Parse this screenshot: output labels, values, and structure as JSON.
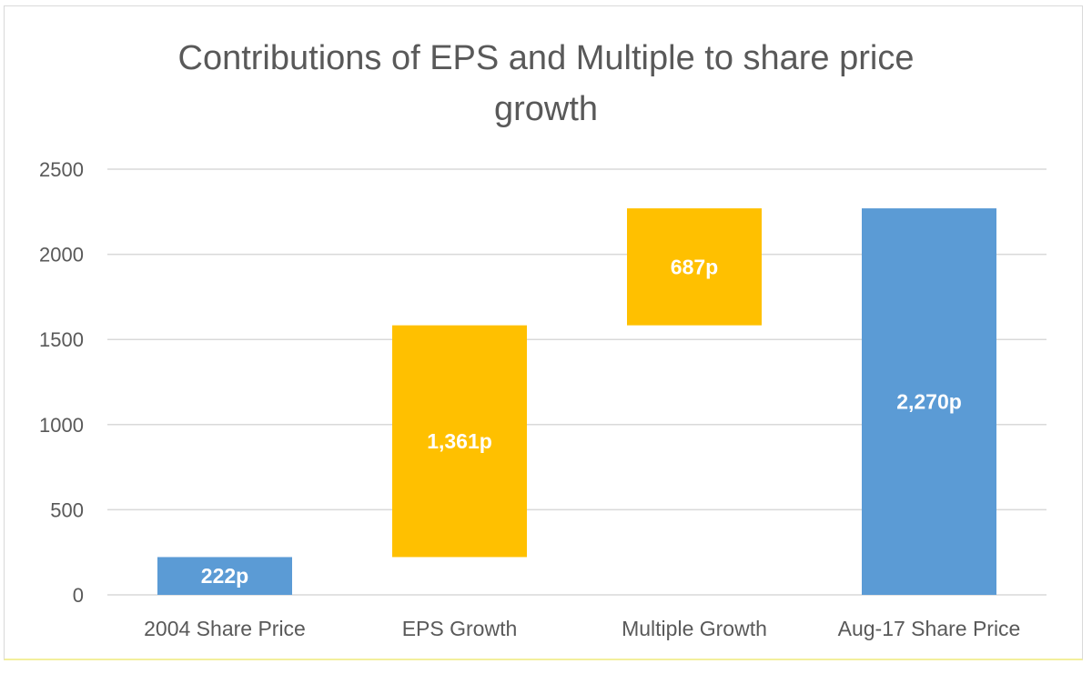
{
  "chart_data": {
    "type": "bar",
    "subtype": "waterfall",
    "title_lines": [
      "Contributions of EPS and Multiple to share price",
      "growth"
    ],
    "categories": [
      "2004 Share Price",
      "EPS Growth",
      "Multiple Growth",
      "Aug-17 Share Price"
    ],
    "bars": [
      {
        "category": "2004 Share Price",
        "start": 0,
        "end": 222,
        "label": "222p",
        "kind": "total"
      },
      {
        "category": "EPS Growth",
        "start": 222,
        "end": 1583,
        "label": "1,361p",
        "kind": "increase"
      },
      {
        "category": "Multiple Growth",
        "start": 1583,
        "end": 2270,
        "label": "687p",
        "kind": "increase"
      },
      {
        "category": "Aug-17 Share Price",
        "start": 0,
        "end": 2270,
        "label": "2,270p",
        "kind": "total"
      }
    ],
    "y_ticks": [
      "0",
      "500",
      "1000",
      "1500",
      "2000",
      "2500"
    ],
    "ylim": [
      0,
      2500
    ],
    "grid": true,
    "legend": "none",
    "colors": {
      "total": "#5b9bd5",
      "increase": "#ffc000",
      "grid": "#d9d9d9",
      "text": "#595959"
    }
  }
}
